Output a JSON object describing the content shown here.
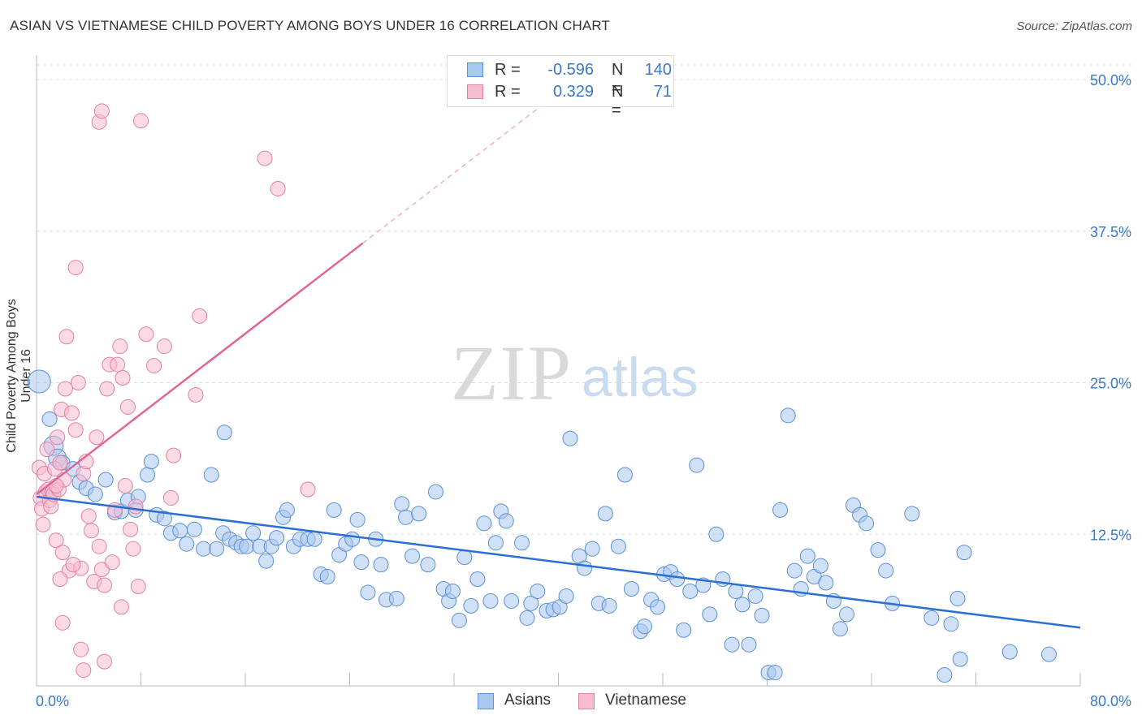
{
  "title": "ASIAN VS VIETNAMESE CHILD POVERTY AMONG BOYS UNDER 16 CORRELATION CHART",
  "source": "Source: ZipAtlas.com",
  "watermark": {
    "zip": "ZIP",
    "atlas": "atlas"
  },
  "legend": {
    "rows": [
      {
        "r_label": "R =",
        "r_value": "-0.596",
        "n_label": "N =",
        "n_value": "140",
        "fill": "#a9c8f0",
        "stroke": "#5b8fd6"
      },
      {
        "r_label": "R =",
        "r_value": "0.329",
        "n_label": "N =",
        "n_value": "71",
        "fill": "#f7bcd0",
        "stroke": "#e47fa3"
      }
    ]
  },
  "bottom_legend": [
    {
      "label": "Asians",
      "fill": "#a9c8f0",
      "stroke": "#5b8fd6"
    },
    {
      "label": "Vietnamese",
      "fill": "#f7bcd0",
      "stroke": "#e47fa3"
    }
  ],
  "chart_data": {
    "type": "scatter",
    "title": "ASIAN VS VIETNAMESE CHILD POVERTY AMONG BOYS UNDER 16 CORRELATION CHART",
    "xlabel": "",
    "ylabel": "Child Poverty Among Boys Under 16",
    "xlim": [
      0,
      80
    ],
    "ylim": [
      0,
      50
    ],
    "x_tick_labels": [
      "0.0%",
      "80.0%"
    ],
    "y_tick_labels": [
      "12.5%",
      "25.0%",
      "37.5%",
      "50.0%"
    ],
    "y_ticks": [
      12.5,
      25.0,
      37.5,
      50.0
    ],
    "grid": true,
    "legend_position": "top-center",
    "series": [
      {
        "name": "Asians",
        "color": "#5b8fd6",
        "fill": "#a9c8f0",
        "R": -0.596,
        "N": 140,
        "trend": {
          "x": [
            0,
            80
          ],
          "y": [
            15.6,
            4.8
          ]
        },
        "points": [
          [
            0.2,
            25.1
          ],
          [
            1.0,
            22.0
          ],
          [
            1.3,
            19.8
          ],
          [
            1.6,
            18.8
          ],
          [
            2.0,
            18.4
          ],
          [
            2.8,
            17.9
          ],
          [
            3.3,
            16.8
          ],
          [
            3.8,
            16.3
          ],
          [
            4.5,
            15.8
          ],
          [
            5.3,
            17.0
          ],
          [
            6.0,
            14.3
          ],
          [
            6.5,
            14.4
          ],
          [
            7.0,
            15.3
          ],
          [
            7.6,
            14.5
          ],
          [
            8.5,
            17.4
          ],
          [
            7.8,
            15.6
          ],
          [
            9.2,
            14.1
          ],
          [
            8.8,
            18.5
          ],
          [
            9.8,
            13.8
          ],
          [
            10.3,
            12.6
          ],
          [
            11.0,
            12.8
          ],
          [
            11.5,
            11.7
          ],
          [
            12.1,
            12.9
          ],
          [
            12.8,
            11.3
          ],
          [
            13.4,
            17.4
          ],
          [
            13.8,
            11.3
          ],
          [
            14.3,
            12.6
          ],
          [
            14.8,
            12.1
          ],
          [
            15.3,
            11.8
          ],
          [
            15.7,
            11.5
          ],
          [
            14.4,
            20.9
          ],
          [
            16.1,
            11.5
          ],
          [
            16.6,
            12.6
          ],
          [
            17.1,
            11.5
          ],
          [
            17.6,
            10.3
          ],
          [
            18.0,
            11.5
          ],
          [
            18.4,
            12.2
          ],
          [
            18.9,
            13.9
          ],
          [
            19.2,
            14.5
          ],
          [
            19.7,
            11.5
          ],
          [
            20.2,
            12.1
          ],
          [
            20.8,
            12.1
          ],
          [
            21.3,
            12.1
          ],
          [
            21.8,
            9.2
          ],
          [
            22.3,
            9.0
          ],
          [
            22.8,
            14.5
          ],
          [
            23.2,
            10.8
          ],
          [
            23.7,
            11.7
          ],
          [
            24.2,
            12.1
          ],
          [
            24.6,
            13.7
          ],
          [
            24.9,
            10.2
          ],
          [
            25.4,
            7.7
          ],
          [
            26.0,
            12.1
          ],
          [
            26.4,
            10.0
          ],
          [
            26.8,
            7.1
          ],
          [
            27.6,
            7.2
          ],
          [
            28.0,
            15.0
          ],
          [
            28.3,
            13.9
          ],
          [
            28.8,
            10.7
          ],
          [
            29.3,
            14.2
          ],
          [
            30.0,
            10.0
          ],
          [
            30.6,
            16.0
          ],
          [
            31.2,
            8.0
          ],
          [
            31.6,
            7.0
          ],
          [
            31.9,
            7.8
          ],
          [
            32.4,
            5.4
          ],
          [
            32.8,
            10.6
          ],
          [
            33.3,
            6.6
          ],
          [
            33.8,
            8.8
          ],
          [
            34.3,
            13.4
          ],
          [
            34.8,
            7.0
          ],
          [
            35.2,
            11.8
          ],
          [
            35.6,
            14.4
          ],
          [
            36.0,
            13.6
          ],
          [
            36.4,
            7.0
          ],
          [
            37.2,
            11.8
          ],
          [
            37.6,
            5.6
          ],
          [
            37.9,
            6.8
          ],
          [
            38.4,
            7.8
          ],
          [
            39.1,
            6.2
          ],
          [
            39.6,
            6.3
          ],
          [
            40.1,
            6.5
          ],
          [
            40.6,
            7.4
          ],
          [
            40.9,
            20.4
          ],
          [
            41.6,
            10.7
          ],
          [
            42.0,
            9.7
          ],
          [
            42.6,
            11.3
          ],
          [
            43.1,
            6.8
          ],
          [
            43.6,
            14.2
          ],
          [
            43.9,
            6.6
          ],
          [
            44.6,
            11.5
          ],
          [
            45.1,
            17.4
          ],
          [
            45.6,
            8.0
          ],
          [
            46.3,
            4.5
          ],
          [
            46.6,
            4.9
          ],
          [
            47.1,
            7.1
          ],
          [
            47.6,
            6.5
          ],
          [
            48.1,
            9.2
          ],
          [
            48.6,
            9.4
          ],
          [
            49.1,
            8.8
          ],
          [
            49.6,
            4.6
          ],
          [
            50.1,
            7.8
          ],
          [
            50.6,
            18.2
          ],
          [
            51.1,
            8.3
          ],
          [
            51.6,
            5.9
          ],
          [
            52.1,
            12.5
          ],
          [
            52.6,
            8.8
          ],
          [
            53.3,
            3.4
          ],
          [
            53.6,
            7.8
          ],
          [
            54.1,
            6.7
          ],
          [
            54.6,
            3.4
          ],
          [
            55.1,
            7.4
          ],
          [
            55.6,
            5.8
          ],
          [
            56.1,
            1.1
          ],
          [
            56.6,
            1.1
          ],
          [
            57.0,
            14.5
          ],
          [
            57.6,
            22.3
          ],
          [
            58.1,
            9.5
          ],
          [
            58.6,
            8.0
          ],
          [
            59.1,
            10.7
          ],
          [
            59.6,
            9.0
          ],
          [
            60.1,
            9.9
          ],
          [
            60.5,
            8.5
          ],
          [
            61.1,
            7.0
          ],
          [
            61.6,
            4.7
          ],
          [
            62.1,
            5.9
          ],
          [
            62.6,
            14.9
          ],
          [
            63.1,
            14.1
          ],
          [
            63.6,
            13.4
          ],
          [
            64.5,
            11.2
          ],
          [
            65.1,
            9.5
          ],
          [
            65.6,
            6.8
          ],
          [
            67.1,
            14.2
          ],
          [
            68.6,
            5.6
          ],
          [
            70.1,
            5.1
          ],
          [
            70.6,
            7.2
          ],
          [
            71.1,
            11.0
          ],
          [
            69.6,
            0.9
          ],
          [
            70.8,
            2.2
          ],
          [
            74.6,
            2.8
          ],
          [
            77.6,
            2.6
          ]
        ]
      },
      {
        "name": "Vietnamese",
        "color": "#e47fa3",
        "fill": "#f7bcd0",
        "R": 0.329,
        "N": 71,
        "trend": {
          "x": [
            0,
            25
          ],
          "y": [
            15.8,
            36.5
          ]
        },
        "points": [
          [
            0.2,
            18.0
          ],
          [
            0.3,
            15.5
          ],
          [
            0.4,
            14.6
          ],
          [
            0.5,
            13.3
          ],
          [
            0.6,
            17.5
          ],
          [
            0.7,
            16.0
          ],
          [
            0.8,
            19.5
          ],
          [
            0.9,
            16.2
          ],
          [
            1.0,
            15.3
          ],
          [
            1.1,
            14.8
          ],
          [
            1.2,
            16.0
          ],
          [
            1.3,
            15.8
          ],
          [
            1.4,
            17.9
          ],
          [
            1.5,
            12.0
          ],
          [
            1.6,
            20.5
          ],
          [
            1.7,
            16.2
          ],
          [
            1.8,
            18.4
          ],
          [
            1.9,
            22.8
          ],
          [
            2.0,
            11.0
          ],
          [
            2.1,
            17.0
          ],
          [
            2.3,
            28.8
          ],
          [
            2.5,
            9.5
          ],
          [
            2.7,
            22.5
          ],
          [
            3.0,
            21.1
          ],
          [
            3.2,
            25.0
          ],
          [
            3.4,
            9.7
          ],
          [
            3.6,
            17.5
          ],
          [
            3.8,
            18.5
          ],
          [
            4.0,
            14.0
          ],
          [
            4.2,
            12.8
          ],
          [
            4.4,
            8.6
          ],
          [
            4.6,
            20.5
          ],
          [
            4.8,
            11.5
          ],
          [
            5.0,
            9.6
          ],
          [
            5.2,
            8.3
          ],
          [
            5.4,
            24.5
          ],
          [
            5.6,
            26.5
          ],
          [
            5.8,
            10.2
          ],
          [
            6.0,
            14.5
          ],
          [
            6.2,
            26.5
          ],
          [
            6.4,
            28.0
          ],
          [
            6.6,
            25.4
          ],
          [
            6.8,
            16.5
          ],
          [
            7.0,
            23.0
          ],
          [
            7.2,
            12.9
          ],
          [
            7.4,
            11.3
          ],
          [
            7.6,
            14.8
          ],
          [
            7.8,
            8.2
          ],
          [
            8.0,
            46.6
          ],
          [
            8.4,
            29.0
          ],
          [
            9.0,
            26.4
          ],
          [
            9.8,
            28.0
          ],
          [
            10.3,
            15.5
          ],
          [
            10.5,
            19.0
          ],
          [
            12.2,
            24.0
          ],
          [
            12.5,
            30.5
          ],
          [
            17.5,
            43.5
          ],
          [
            18.5,
            41.0
          ],
          [
            20.8,
            16.2
          ],
          [
            3.0,
            34.5
          ],
          [
            2.2,
            24.5
          ],
          [
            1.8,
            8.8
          ],
          [
            2.0,
            5.2
          ],
          [
            3.4,
            3.0
          ],
          [
            3.6,
            1.3
          ],
          [
            5.2,
            2.0
          ],
          [
            4.8,
            46.5
          ],
          [
            5.0,
            47.4
          ],
          [
            6.5,
            6.5
          ],
          [
            2.8,
            10.0
          ],
          [
            1.5,
            16.5
          ]
        ]
      }
    ]
  }
}
